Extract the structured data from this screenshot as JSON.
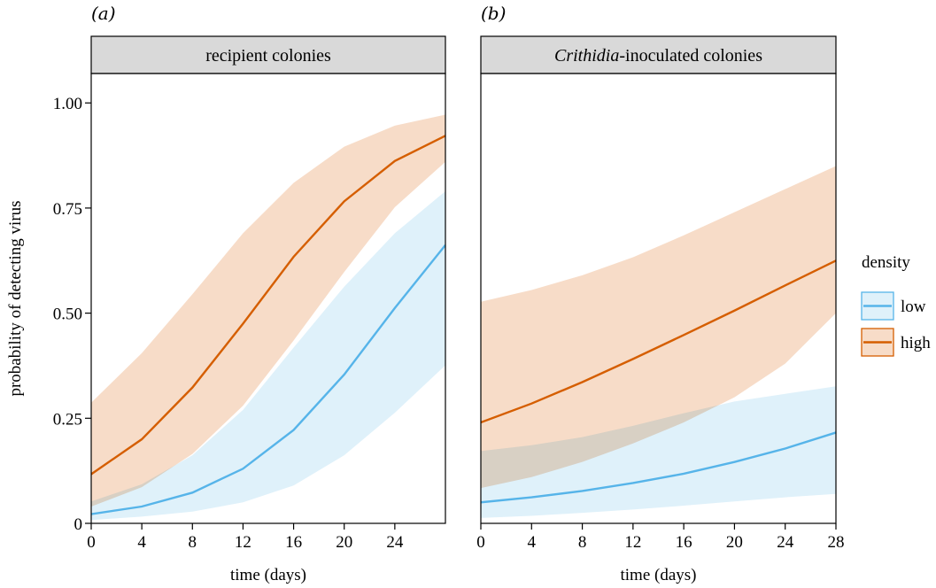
{
  "ylabel": "probability of detecting virus",
  "legend": {
    "title": "density",
    "placement": "right",
    "entries": [
      {
        "name": "low",
        "color": "#56b4e9",
        "fill": "#dff1fa"
      },
      {
        "name": "high",
        "color": "#d55e00",
        "fill": "#f7dcc8"
      }
    ]
  },
  "chart_data": [
    {
      "type": "line",
      "panel_label": "(a)",
      "strip_pre": "",
      "strip_em": "",
      "strip_post": "recipient colonies",
      "xlabel": "time (days)",
      "xlim": [
        0,
        28
      ],
      "xticks": [
        0,
        4,
        8,
        12,
        16,
        20,
        24
      ],
      "ylim": [
        0,
        1.07
      ],
      "yticks": [
        "0",
        "0.25",
        "0.50",
        "0.75",
        "1.00"
      ],
      "x": [
        0,
        4,
        8,
        12,
        16,
        20,
        24,
        28
      ],
      "series": [
        {
          "name": "low",
          "values": [
            0.022,
            0.04,
            0.073,
            0.13,
            0.222,
            0.354,
            0.512,
            0.662
          ],
          "lower": [
            0.008,
            0.016,
            0.028,
            0.05,
            0.09,
            0.162,
            0.263,
            0.376
          ],
          "upper": [
            0.052,
            0.093,
            0.162,
            0.27,
            0.418,
            0.563,
            0.69,
            0.79
          ]
        },
        {
          "name": "high",
          "values": [
            0.117,
            0.2,
            0.323,
            0.475,
            0.634,
            0.766,
            0.862,
            0.922
          ],
          "lower": [
            0.04,
            0.086,
            0.165,
            0.28,
            0.435,
            0.598,
            0.752,
            0.86
          ],
          "upper": [
            0.287,
            0.405,
            0.545,
            0.69,
            0.81,
            0.896,
            0.946,
            0.972
          ]
        }
      ]
    },
    {
      "type": "line",
      "panel_label": "(b)",
      "strip_pre": "",
      "strip_em": "Crithidia",
      "strip_post": "-inoculated colonies",
      "xlabel": "time (days)",
      "xlim": [
        0,
        28
      ],
      "xticks": [
        0,
        4,
        8,
        12,
        16,
        20,
        24,
        28
      ],
      "ylim": [
        0,
        1.07
      ],
      "yticks": [],
      "x": [
        0,
        4,
        8,
        12,
        16,
        20,
        24,
        28
      ],
      "series": [
        {
          "name": "low",
          "values": [
            0.05,
            0.062,
            0.077,
            0.096,
            0.118,
            0.146,
            0.178,
            0.216
          ],
          "lower": [
            0.013,
            0.018,
            0.025,
            0.033,
            0.042,
            0.052,
            0.062,
            0.07
          ],
          "upper": [
            0.172,
            0.186,
            0.205,
            0.232,
            0.262,
            0.29,
            0.308,
            0.326
          ]
        },
        {
          "name": "high",
          "values": [
            0.24,
            0.285,
            0.336,
            0.391,
            0.448,
            0.506,
            0.566,
            0.625
          ],
          "lower": [
            0.084,
            0.11,
            0.146,
            0.19,
            0.24,
            0.3,
            0.38,
            0.5
          ],
          "upper": [
            0.527,
            0.555,
            0.59,
            0.633,
            0.685,
            0.74,
            0.795,
            0.85
          ]
        }
      ]
    }
  ]
}
